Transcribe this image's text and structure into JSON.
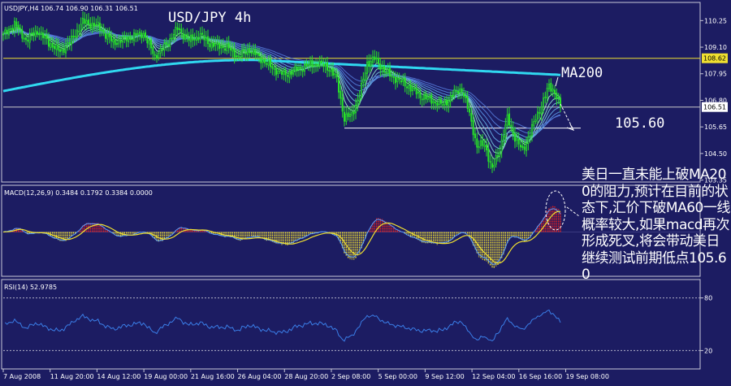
{
  "chart_data": [
    {
      "type": "candlestick",
      "panel": "price",
      "header": "USDJPY,H4  106.74 106.90 106.31 106.51",
      "title": "USD/JPY 4h",
      "ylim": [
        103.3,
        111.0
      ],
      "y_ticks": [
        "110.25",
        "109.10",
        "107.95",
        "106.80",
        "105.65",
        "104.50",
        "103.35"
      ],
      "horizontal_lines": [
        {
          "value": 108.62,
          "label": "108.62",
          "color": "#f0e030"
        },
        {
          "value": 106.51,
          "label": "106.51",
          "color": "#c8c8c8"
        },
        {
          "value": 105.6,
          "label": "105.60",
          "color": "#ffffff"
        }
      ],
      "annotations": [
        {
          "text": "MA200"
        },
        {
          "text": "105.60"
        }
      ],
      "series": [
        {
          "name": "MA200",
          "color": "#30d8f0"
        }
      ],
      "anchors": [
        [
          0,
          109.6
        ],
        [
          6,
          110.1
        ],
        [
          12,
          109.4
        ],
        [
          18,
          109.8
        ],
        [
          24,
          109.3
        ],
        [
          30,
          108.9
        ],
        [
          36,
          109.4
        ],
        [
          42,
          110.2
        ],
        [
          50,
          110.0
        ],
        [
          58,
          109.3
        ],
        [
          66,
          109.5
        ],
        [
          74,
          109.7
        ],
        [
          80,
          108.7
        ],
        [
          86,
          109.2
        ],
        [
          92,
          109.9
        ],
        [
          98,
          109.4
        ],
        [
          104,
          109.6
        ],
        [
          110,
          109.2
        ],
        [
          118,
          109.1
        ],
        [
          124,
          108.7
        ],
        [
          130,
          109.0
        ],
        [
          136,
          108.6
        ],
        [
          142,
          108.2
        ],
        [
          148,
          107.9
        ],
        [
          154,
          108.1
        ],
        [
          160,
          108.3
        ],
        [
          166,
          108.4
        ],
        [
          172,
          108.2
        ],
        [
          176,
          107.7
        ],
        [
          180,
          106.0
        ],
        [
          184,
          106.2
        ],
        [
          188,
          107.0
        ],
        [
          192,
          108.4
        ],
        [
          196,
          108.6
        ],
        [
          202,
          108.0
        ],
        [
          208,
          107.7
        ],
        [
          214,
          107.4
        ],
        [
          220,
          107.0
        ],
        [
          226,
          106.8
        ],
        [
          232,
          106.6
        ],
        [
          238,
          107.1
        ],
        [
          242,
          107.3
        ],
        [
          246,
          106.2
        ],
        [
          250,
          104.8
        ],
        [
          254,
          104.9
        ],
        [
          258,
          103.8
        ],
        [
          262,
          104.7
        ],
        [
          266,
          106.0
        ],
        [
          270,
          105.2
        ],
        [
          274,
          104.6
        ],
        [
          278,
          105.4
        ],
        [
          284,
          106.6
        ],
        [
          288,
          107.4
        ],
        [
          291,
          107.2
        ],
        [
          294,
          106.5
        ]
      ]
    },
    {
      "type": "bar",
      "panel": "macd",
      "header": "MACD(12,26,9)  0.3484  0.1792  0.3384  0.0000",
      "ylim": [
        -0.9,
        0.95
      ],
      "series": [
        {
          "name": "MACD histogram",
          "positive_color": "#e02020",
          "negative_color": "#f0e030"
        },
        {
          "name": "Signal",
          "color": "#f0e030"
        },
        {
          "name": "MACD",
          "color": "#5aa0ff"
        }
      ]
    },
    {
      "type": "line",
      "panel": "rsi",
      "header": "RSI(14)  52.9785",
      "ylim": [
        0,
        100
      ],
      "y_ticks": [
        "80",
        "20"
      ],
      "levels": [
        80,
        20
      ],
      "series": [
        {
          "name": "RSI(14)",
          "color": "#3a7ee8",
          "last": 52.9785
        }
      ]
    }
  ],
  "x_ticks": [
    "7 Aug 2008",
    "11 Aug 20:00",
    "14 Aug 12:00",
    "19 Aug 00:00",
    "21 Aug 16:00",
    "26 Aug 04:00",
    "28 Aug 20:00",
    "2 Sep 08:00",
    "5 Sep 00:00",
    "9 Sep 12:00",
    "12 Sep 04:00",
    "16 Sep 16:00",
    "19 Sep 08:00"
  ],
  "comment": "美日一直未能上破MA200的阻力,预计在目前的状态下,汇价下破MA60一线概率较大,如果macd再次形成死叉,将会带动美日继续测试前期低点105.60"
}
